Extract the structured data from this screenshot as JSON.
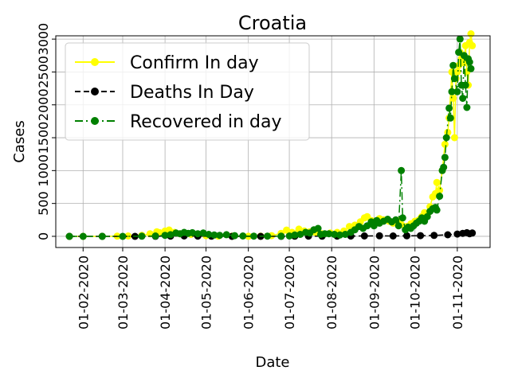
{
  "chart_data": {
    "type": "line",
    "title": "Croatia",
    "xlabel": "Date",
    "ylabel": "Cases",
    "grid": true,
    "legend_position": "top-left",
    "x_ticks": [
      "01-02-2020",
      "01-03-2020",
      "01-04-2020",
      "01-05-2020",
      "01-06-2020",
      "01-07-2020",
      "01-08-2020",
      "01-09-2020",
      "01-10-2020",
      "01-11-2020"
    ],
    "y_ticks": [
      "0",
      "500",
      "1000",
      "1500",
      "2000",
      "2500",
      "3000"
    ],
    "xlim": [
      "2020-01-12",
      "2020-11-25"
    ],
    "ylim": [
      -170,
      3050
    ],
    "series": [
      {
        "name": "Confirm In day",
        "color": "#ffff00",
        "line_style": "solid",
        "marker": "circle",
        "points": [
          [
            "2020-01-22",
            0
          ],
          [
            "2020-02-01",
            0
          ],
          [
            "2020-02-15",
            0
          ],
          [
            "2020-02-26",
            3
          ],
          [
            "2020-03-05",
            5
          ],
          [
            "2020-03-15",
            15
          ],
          [
            "2020-03-21",
            40
          ],
          [
            "2020-03-26",
            70
          ],
          [
            "2020-03-28",
            55
          ],
          [
            "2020-04-01",
            80
          ],
          [
            "2020-04-04",
            96
          ],
          [
            "2020-04-08",
            60
          ],
          [
            "2020-04-12",
            40
          ],
          [
            "2020-04-16",
            45
          ],
          [
            "2020-04-20",
            30
          ],
          [
            "2020-04-25",
            20
          ],
          [
            "2020-05-01",
            10
          ],
          [
            "2020-05-10",
            3
          ],
          [
            "2020-05-20",
            2
          ],
          [
            "2020-06-01",
            1
          ],
          [
            "2020-06-10",
            2
          ],
          [
            "2020-06-18",
            10
          ],
          [
            "2020-06-25",
            45
          ],
          [
            "2020-06-29",
            95
          ],
          [
            "2020-07-03",
            60
          ],
          [
            "2020-07-08",
            110
          ],
          [
            "2020-07-12",
            80
          ],
          [
            "2020-07-16",
            70
          ],
          [
            "2020-07-20",
            60
          ],
          [
            "2020-07-25",
            40
          ],
          [
            "2020-07-31",
            50
          ],
          [
            "2020-08-05",
            60
          ],
          [
            "2020-08-10",
            80
          ],
          [
            "2020-08-14",
            150
          ],
          [
            "2020-08-18",
            170
          ],
          [
            "2020-08-22",
            220
          ],
          [
            "2020-08-25",
            280
          ],
          [
            "2020-08-27",
            300
          ],
          [
            "2020-08-30",
            240
          ],
          [
            "2020-09-02",
            200
          ],
          [
            "2020-09-05",
            270
          ],
          [
            "2020-09-08",
            250
          ],
          [
            "2020-09-12",
            230
          ],
          [
            "2020-09-15",
            200
          ],
          [
            "2020-09-18",
            240
          ],
          [
            "2020-09-21",
            180
          ],
          [
            "2020-09-25",
            150
          ],
          [
            "2020-09-28",
            190
          ],
          [
            "2020-10-01",
            230
          ],
          [
            "2020-10-04",
            250
          ],
          [
            "2020-10-06",
            300
          ],
          [
            "2020-10-08",
            360
          ],
          [
            "2020-10-10",
            330
          ],
          [
            "2020-10-12",
            450
          ],
          [
            "2020-10-14",
            600
          ],
          [
            "2020-10-16",
            650
          ],
          [
            "2020-10-17",
            820
          ],
          [
            "2020-10-19",
            700
          ],
          [
            "2020-10-21",
            1000
          ],
          [
            "2020-10-23",
            1400
          ],
          [
            "2020-10-25",
            1580
          ],
          [
            "2020-10-26",
            1800
          ],
          [
            "2020-10-28",
            2500
          ],
          [
            "2020-10-29",
            2100
          ],
          [
            "2020-10-30",
            1500
          ],
          [
            "2020-10-31",
            2400
          ],
          [
            "2020-11-01",
            2500
          ],
          [
            "2020-11-02",
            2600
          ],
          [
            "2020-11-03",
            2800
          ],
          [
            "2020-11-04",
            2700
          ],
          [
            "2020-11-06",
            2640
          ],
          [
            "2020-11-07",
            2900
          ],
          [
            "2020-11-08",
            2500
          ],
          [
            "2020-11-09",
            2300
          ],
          [
            "2020-11-10",
            2950
          ],
          [
            "2020-11-11",
            3080
          ],
          [
            "2020-11-12",
            2900
          ]
        ]
      },
      {
        "name": "Deaths In Day",
        "color": "#000000",
        "line_style": "dashed",
        "marker": "circle",
        "points": [
          [
            "2020-01-22",
            0
          ],
          [
            "2020-02-15",
            0
          ],
          [
            "2020-03-10",
            0
          ],
          [
            "2020-03-25",
            1
          ],
          [
            "2020-04-05",
            3
          ],
          [
            "2020-04-15",
            5
          ],
          [
            "2020-04-25",
            3
          ],
          [
            "2020-05-05",
            2
          ],
          [
            "2020-05-20",
            0
          ],
          [
            "2020-06-10",
            0
          ],
          [
            "2020-06-25",
            1
          ],
          [
            "2020-07-05",
            2
          ],
          [
            "2020-07-15",
            3
          ],
          [
            "2020-07-25",
            2
          ],
          [
            "2020-08-05",
            3
          ],
          [
            "2020-08-15",
            4
          ],
          [
            "2020-08-25",
            6
          ],
          [
            "2020-09-05",
            8
          ],
          [
            "2020-09-15",
            6
          ],
          [
            "2020-09-25",
            8
          ],
          [
            "2020-10-05",
            10
          ],
          [
            "2020-10-15",
            14
          ],
          [
            "2020-10-25",
            24
          ],
          [
            "2020-11-01",
            35
          ],
          [
            "2020-11-05",
            45
          ],
          [
            "2020-11-08",
            55
          ],
          [
            "2020-11-10",
            40
          ],
          [
            "2020-11-12",
            50
          ]
        ]
      },
      {
        "name": "Recovered in day",
        "color": "#008000",
        "line_style": "dashdot",
        "marker": "circle",
        "points": [
          [
            "2020-01-22",
            0
          ],
          [
            "2020-02-01",
            0
          ],
          [
            "2020-02-15",
            0
          ],
          [
            "2020-03-01",
            0
          ],
          [
            "2020-03-15",
            2
          ],
          [
            "2020-03-25",
            5
          ],
          [
            "2020-04-01",
            15
          ],
          [
            "2020-04-05",
            25
          ],
          [
            "2020-04-09",
            50
          ],
          [
            "2020-04-12",
            40
          ],
          [
            "2020-04-15",
            60
          ],
          [
            "2020-04-18",
            45
          ],
          [
            "2020-04-21",
            55
          ],
          [
            "2020-04-25",
            40
          ],
          [
            "2020-04-29",
            50
          ],
          [
            "2020-05-03",
            30
          ],
          [
            "2020-05-07",
            20
          ],
          [
            "2020-05-11",
            15
          ],
          [
            "2020-05-16",
            25
          ],
          [
            "2020-05-22",
            10
          ],
          [
            "2020-05-28",
            5
          ],
          [
            "2020-06-05",
            3
          ],
          [
            "2020-06-15",
            3
          ],
          [
            "2020-06-25",
            2
          ],
          [
            "2020-07-01",
            5
          ],
          [
            "2020-07-05",
            20
          ],
          [
            "2020-07-09",
            30
          ],
          [
            "2020-07-13",
            60
          ],
          [
            "2020-07-16",
            50
          ],
          [
            "2020-07-19",
            100
          ],
          [
            "2020-07-22",
            120
          ],
          [
            "2020-07-24",
            30
          ],
          [
            "2020-07-27",
            40
          ],
          [
            "2020-07-30",
            40
          ],
          [
            "2020-08-03",
            30
          ],
          [
            "2020-08-07",
            20
          ],
          [
            "2020-08-11",
            30
          ],
          [
            "2020-08-15",
            60
          ],
          [
            "2020-08-18",
            100
          ],
          [
            "2020-08-21",
            150
          ],
          [
            "2020-08-24",
            120
          ],
          [
            "2020-08-27",
            160
          ],
          [
            "2020-08-30",
            220
          ],
          [
            "2020-09-01",
            160
          ],
          [
            "2020-09-03",
            240
          ],
          [
            "2020-09-05",
            200
          ],
          [
            "2020-09-08",
            230
          ],
          [
            "2020-09-11",
            260
          ],
          [
            "2020-09-14",
            220
          ],
          [
            "2020-09-17",
            250
          ],
          [
            "2020-09-19",
            160
          ],
          [
            "2020-09-21",
            1000
          ],
          [
            "2020-09-22",
            280
          ],
          [
            "2020-09-24",
            100
          ],
          [
            "2020-09-26",
            140
          ],
          [
            "2020-09-28",
            120
          ],
          [
            "2020-09-30",
            160
          ],
          [
            "2020-10-02",
            200
          ],
          [
            "2020-10-04",
            230
          ],
          [
            "2020-10-06",
            280
          ],
          [
            "2020-10-08",
            230
          ],
          [
            "2020-10-10",
            300
          ],
          [
            "2020-10-12",
            380
          ],
          [
            "2020-10-14",
            420
          ],
          [
            "2020-10-16",
            440
          ],
          [
            "2020-10-17",
            400
          ],
          [
            "2020-10-19",
            610
          ],
          [
            "2020-10-21",
            1000
          ],
          [
            "2020-10-22",
            1050
          ],
          [
            "2020-10-23",
            1200
          ],
          [
            "2020-10-24",
            1500
          ],
          [
            "2020-10-26",
            1950
          ],
          [
            "2020-10-27",
            1800
          ],
          [
            "2020-10-28",
            2200
          ],
          [
            "2020-10-29",
            2600
          ],
          [
            "2020-10-30",
            2400
          ],
          [
            "2020-11-01",
            2200
          ],
          [
            "2020-11-02",
            2800
          ],
          [
            "2020-11-03",
            3000
          ],
          [
            "2020-11-04",
            2300
          ],
          [
            "2020-11-05",
            2100
          ],
          [
            "2020-11-06",
            2750
          ],
          [
            "2020-11-07",
            2300
          ],
          [
            "2020-11-08",
            1960
          ],
          [
            "2020-11-09",
            2700
          ],
          [
            "2020-11-10",
            2650
          ],
          [
            "2020-11-11",
            2550
          ]
        ]
      }
    ]
  }
}
